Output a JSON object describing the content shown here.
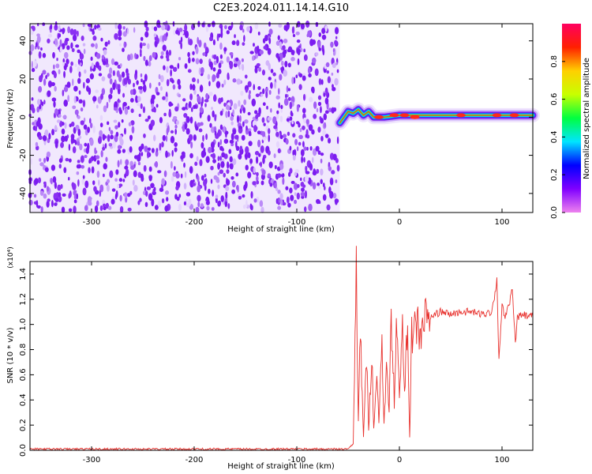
{
  "title": "C2E3.2024.011.14.14.G10",
  "colors": {
    "spec_purple": "#7c1cf0",
    "spec_light": "#d9c2fb",
    "snr_line": "#e8322e",
    "axis": "#000000"
  },
  "chart_data": [
    {
      "type": "heatmap",
      "xlabel": "Height of straight line (km)",
      "ylabel": "Frequency (Hz)",
      "xlim": [
        -360,
        130
      ],
      "ylim": [
        -50,
        49
      ],
      "xticks": [
        -300,
        -200,
        -100,
        0,
        100
      ],
      "yticks": [
        -40,
        -20,
        0,
        20,
        40
      ],
      "colorbar": {
        "label": "Normalized spectral amplitude",
        "range": [
          0,
          1
        ],
        "ticks": [
          "0.0",
          "0.2",
          "0.4",
          "0.6",
          "0.8"
        ],
        "colormap": [
          "#ee82ee",
          "#8000ff",
          "#0000ff",
          "#00e5ff",
          "#00ff40",
          "#c8ff00",
          "#ffd000",
          "#ff2000",
          "#ff0060"
        ]
      },
      "noise_region_x": [
        -360,
        -58
      ],
      "signal_track": [
        {
          "x": -58,
          "f": -3
        },
        {
          "x": -50,
          "f": 3
        },
        {
          "x": -45,
          "f": 2
        },
        {
          "x": -40,
          "f": 4
        },
        {
          "x": -35,
          "f": 1
        },
        {
          "x": -30,
          "f": 3
        },
        {
          "x": -25,
          "f": 0
        },
        {
          "x": -15,
          "f": 0
        },
        {
          "x": 0,
          "f": 1
        },
        {
          "x": 20,
          "f": 1
        },
        {
          "x": 50,
          "f": 1
        },
        {
          "x": 80,
          "f": 1
        },
        {
          "x": 100,
          "f": 1
        },
        {
          "x": 130,
          "f": 1
        }
      ]
    },
    {
      "type": "line",
      "xlabel": "Height of straight line (km)",
      "ylabel": "SNR (10 * v/v)",
      "yscale_label": "(x10⁴)",
      "xlim": [
        -360,
        130
      ],
      "ylim": [
        0,
        1.5
      ],
      "xticks": [
        -300,
        -200,
        -100,
        0,
        100
      ],
      "yticks": [
        "0.0",
        "0.2",
        "0.4",
        "0.6",
        "0.8",
        "1.0",
        "1.2",
        "1.4"
      ],
      "series": [
        {
          "color": "#e8322e",
          "x": [
            -360,
            -300,
            -200,
            -100,
            -50,
            -45,
            -42,
            -40,
            -38,
            -35,
            -32,
            -30,
            -27,
            -25,
            -22,
            -20,
            -17,
            -15,
            -12,
            -10,
            -8,
            -5,
            -3,
            0,
            3,
            5,
            8,
            10,
            12,
            15,
            18,
            20,
            25,
            30,
            35,
            40,
            50,
            60,
            70,
            80,
            90,
            95,
            97,
            100,
            103,
            105,
            110,
            113,
            115,
            120,
            125,
            130
          ],
          "y": [
            0.01,
            0.01,
            0.01,
            0.01,
            0.01,
            0.05,
            1.48,
            0.2,
            0.95,
            0.1,
            0.75,
            0.15,
            0.8,
            0.2,
            0.55,
            0.25,
            0.9,
            0.2,
            0.7,
            0.3,
            1.05,
            0.4,
            0.95,
            0.5,
            0.95,
            0.4,
            1.1,
            0.1,
            0.9,
            0.95,
            1.0,
            0.9,
            1.05,
            1.05,
            1.08,
            1.1,
            1.08,
            1.1,
            1.1,
            1.08,
            1.1,
            1.35,
            0.72,
            1.15,
            1.05,
            1.1,
            1.27,
            0.85,
            1.05,
            1.08,
            1.06,
            1.07
          ]
        }
      ]
    }
  ]
}
